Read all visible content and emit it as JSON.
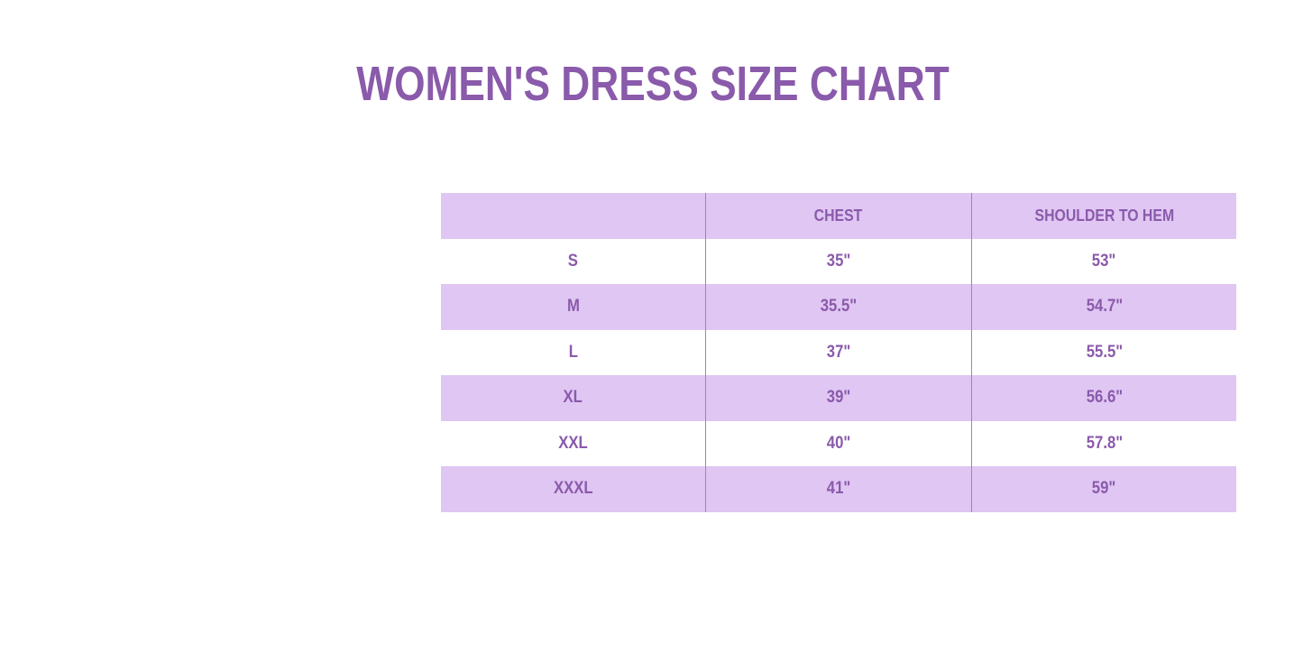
{
  "title": "WOMEN'S DRESS SIZE CHART",
  "colors": {
    "accent": "#8a5aab",
    "row_fill": "#e0c6f3"
  },
  "table": {
    "headers": [
      "",
      "CHEST",
      "SHOULDER TO HEM"
    ],
    "rows": [
      [
        "S",
        "35\"",
        "53\""
      ],
      [
        "M",
        "35.5\"",
        "54.7\""
      ],
      [
        "L",
        "37\"",
        "55.5\""
      ],
      [
        "XL",
        "39\"",
        "56.6\""
      ],
      [
        "XXL",
        "40\"",
        "57.8\""
      ],
      [
        "XXXL",
        "41\"",
        "59\""
      ]
    ]
  }
}
